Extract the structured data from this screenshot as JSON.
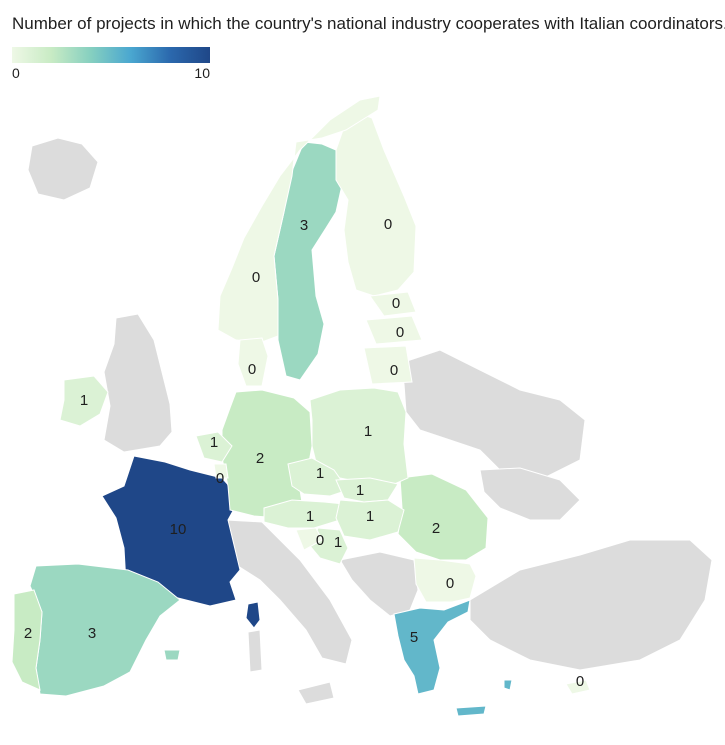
{
  "title": "Number of projects in which the country's national industry cooperates with Italian coordinators.",
  "legend": {
    "min_label": "0",
    "max_label": "10",
    "min": 0,
    "max": 10,
    "color_low": "#eef8e6",
    "color_high": "#1f4788",
    "no_data_color": "#dcdcdc"
  },
  "countries": [
    {
      "name": "France",
      "value": 10,
      "label": "10"
    },
    {
      "name": "Greece",
      "value": 5,
      "label": "5"
    },
    {
      "name": "Spain",
      "value": 3,
      "label": "3"
    },
    {
      "name": "Sweden",
      "value": 3,
      "label": "3"
    },
    {
      "name": "Portugal",
      "value": 2,
      "label": "2"
    },
    {
      "name": "Germany",
      "value": 2,
      "label": "2"
    },
    {
      "name": "Romania",
      "value": 2,
      "label": "2"
    },
    {
      "name": "Ireland",
      "value": 1,
      "label": "1"
    },
    {
      "name": "Belgium",
      "value": 1,
      "label": "1"
    },
    {
      "name": "Poland",
      "value": 1,
      "label": "1"
    },
    {
      "name": "Czechia",
      "value": 1,
      "label": "1"
    },
    {
      "name": "Slovakia",
      "value": 1,
      "label": "1"
    },
    {
      "name": "Austria",
      "value": 1,
      "label": "1"
    },
    {
      "name": "Hungary",
      "value": 1,
      "label": "1"
    },
    {
      "name": "Croatia",
      "value": 1,
      "label": "1"
    },
    {
      "name": "Luxembourg",
      "value": 0,
      "label": "0"
    },
    {
      "name": "Slovenia",
      "value": 0,
      "label": "0"
    },
    {
      "name": "Bulgaria",
      "value": 0,
      "label": "0"
    },
    {
      "name": "Cyprus",
      "value": 0,
      "label": "0"
    },
    {
      "name": "Finland",
      "value": 0,
      "label": "0"
    },
    {
      "name": "Norway",
      "value": 0,
      "label": "0"
    },
    {
      "name": "Estonia",
      "value": 0,
      "label": "0"
    },
    {
      "name": "Latvia",
      "value": 0,
      "label": "0"
    },
    {
      "name": "Lithuania",
      "value": 0,
      "label": "0"
    },
    {
      "name": "Denmark",
      "value": 0,
      "label": "0"
    }
  ]
}
